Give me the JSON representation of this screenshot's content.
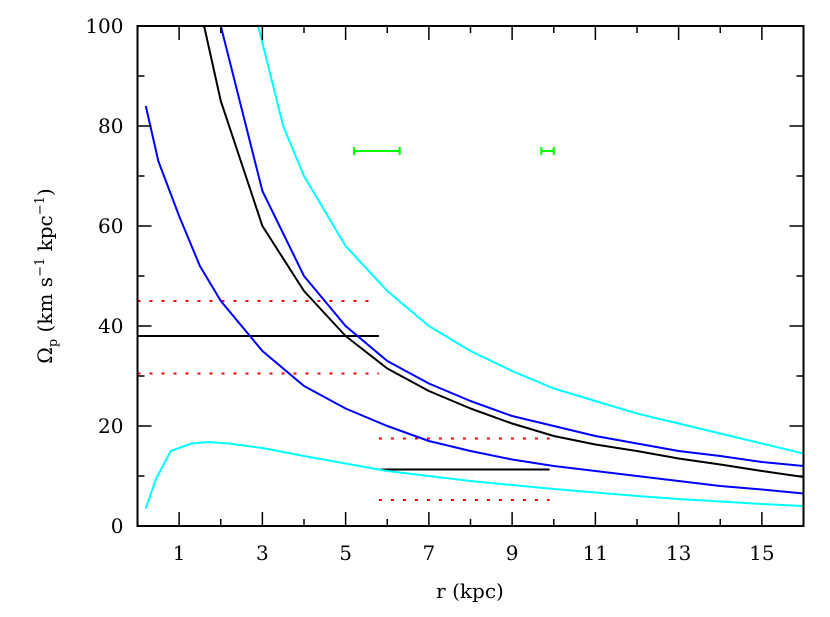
{
  "chart_data": {
    "type": "line",
    "title": "",
    "xlabel": "r (kpc)",
    "ylabel": "Ω_p (km s^-1 kpc^-1)",
    "xlim": [
      0,
      16
    ],
    "ylim": [
      0,
      100
    ],
    "x_ticks_labeled": [
      1,
      3,
      5,
      7,
      9,
      11,
      13,
      15
    ],
    "y_ticks_labeled": [
      0,
      20,
      40,
      60,
      80,
      100
    ],
    "grid": false,
    "series": [
      {
        "name": "cyan-upper",
        "color": "#00ffff",
        "x": [
          2.9,
          3.5,
          4,
          5,
          6,
          7,
          8,
          9,
          10,
          11,
          12,
          13,
          14,
          15,
          16
        ],
        "values": [
          100,
          80,
          70,
          56,
          47,
          40,
          35,
          31,
          27.5,
          25,
          22.5,
          20.5,
          18.5,
          16.5,
          14.5
        ]
      },
      {
        "name": "blue-upper",
        "color": "#0000ff",
        "x": [
          2.0,
          3,
          4,
          5,
          6,
          7,
          8,
          9,
          10,
          11,
          12,
          13,
          14,
          15,
          16
        ],
        "values": [
          100,
          67,
          50,
          40,
          33,
          28.5,
          25,
          22,
          20,
          18,
          16.5,
          15,
          14,
          12.8,
          12
        ]
      },
      {
        "name": "black-center",
        "color": "#000000",
        "x": [
          1.6,
          2,
          3,
          4,
          5,
          6,
          7,
          8,
          9,
          10,
          11,
          12,
          13,
          14,
          15,
          16
        ],
        "values": [
          100,
          85,
          60,
          47,
          38,
          31.5,
          27,
          23.5,
          20.5,
          18,
          16.3,
          15,
          13.5,
          12.3,
          11,
          9.8
        ]
      },
      {
        "name": "blue-lower",
        "color": "#0000ff",
        "x": [
          0.2,
          0.5,
          1,
          1.5,
          2,
          3,
          4,
          5,
          6,
          7,
          8,
          9,
          10,
          11,
          12,
          13,
          14,
          15,
          16
        ],
        "values": [
          84,
          73,
          62,
          52,
          45,
          35,
          28,
          23.5,
          20,
          17,
          15,
          13.3,
          12,
          11,
          10,
          9,
          8,
          7.3,
          6.5
        ]
      },
      {
        "name": "cyan-lower",
        "color": "#00ffff",
        "x": [
          0.2,
          0.45,
          0.8,
          1.3,
          1.7,
          2.2,
          3,
          4,
          5,
          6,
          7,
          8,
          9,
          10,
          11,
          12,
          13,
          14,
          15,
          16
        ],
        "values": [
          3.5,
          9.5,
          15,
          16.5,
          16.8,
          16.5,
          15.6,
          14,
          12.5,
          11,
          10,
          9,
          8.2,
          7.4,
          6.7,
          6,
          5.4,
          4.9,
          4.4,
          4
        ]
      }
    ],
    "horizontal_lines": [
      {
        "name": "pattern-speed-inner",
        "color": "#000000",
        "style": "solid",
        "y": 38,
        "x_range": [
          0,
          5.8
        ]
      },
      {
        "name": "pattern-speed-inner-upper",
        "color": "#ff0000",
        "style": "dotted",
        "y": 45,
        "x_range": [
          0,
          5.7
        ]
      },
      {
        "name": "pattern-speed-inner-lower",
        "color": "#ff0000",
        "style": "dotted",
        "y": 30.5,
        "x_range": [
          0,
          5.8
        ]
      },
      {
        "name": "pattern-speed-outer",
        "color": "#000000",
        "style": "solid",
        "y": 11.3,
        "x_range": [
          5.8,
          9.9
        ]
      },
      {
        "name": "pattern-speed-outer-upper",
        "color": "#ff0000",
        "style": "dotted",
        "y": 17.5,
        "x_range": [
          5.8,
          9.9
        ]
      },
      {
        "name": "pattern-speed-outer-lower",
        "color": "#ff0000",
        "style": "dotted",
        "y": 5.2,
        "x_range": [
          5.8,
          9.9
        ]
      }
    ],
    "error_bars": [
      {
        "name": "range-bar-1",
        "color": "#00ff00",
        "y": 75,
        "x_range": [
          5.2,
          6.3
        ]
      },
      {
        "name": "range-bar-2",
        "color": "#00ff00",
        "y": 75,
        "x_range": [
          9.7,
          10.0
        ]
      }
    ]
  }
}
